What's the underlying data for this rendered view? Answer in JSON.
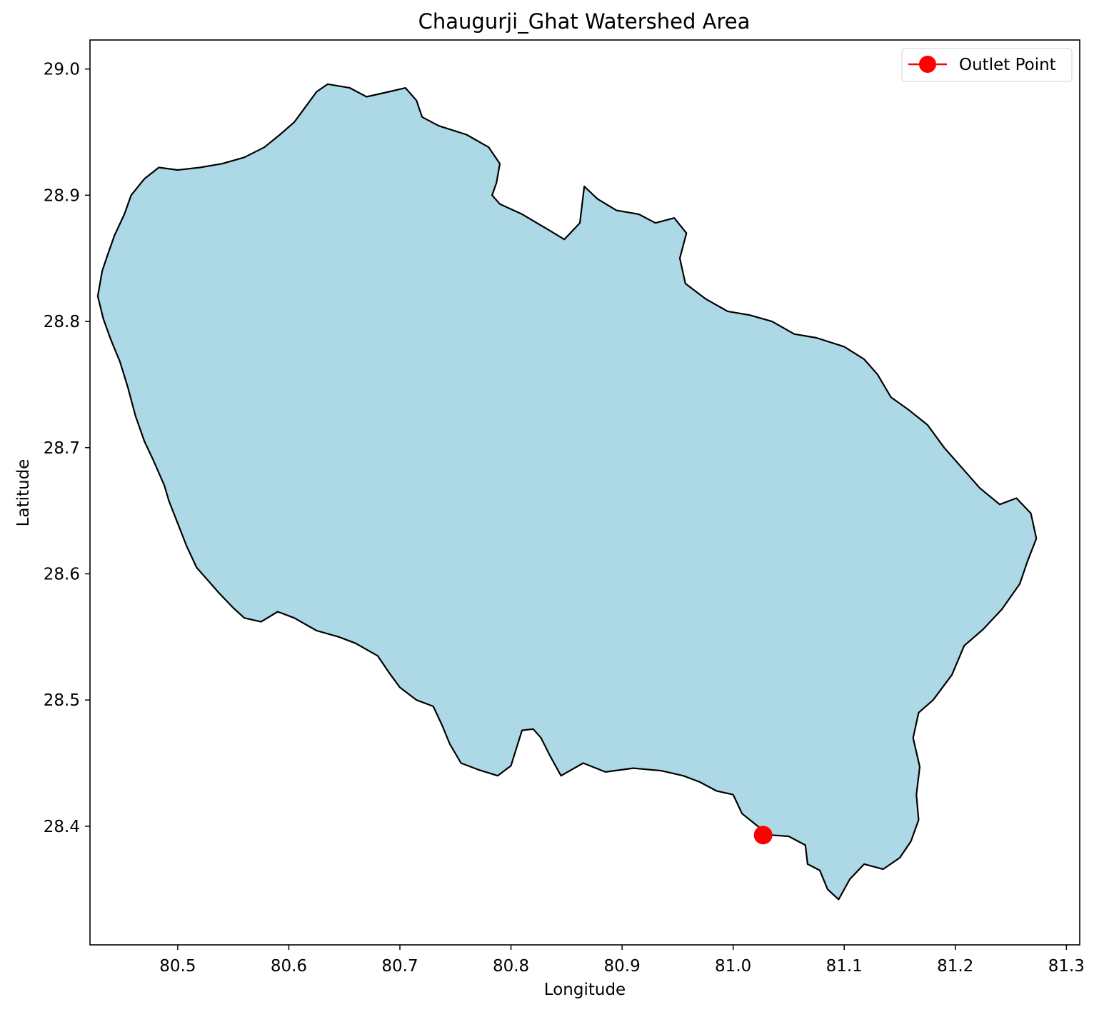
{
  "chart_data": {
    "type": "map",
    "title": "Chaugurji_Ghat Watershed Area",
    "xlabel": "Longitude",
    "ylabel": "Latitude",
    "xlim": [
      80.421,
      81.312
    ],
    "ylim": [
      28.306,
      29.023
    ],
    "xticks": [
      80.5,
      80.6,
      80.7,
      80.8,
      80.9,
      81.0,
      81.1,
      81.2,
      81.3
    ],
    "xtick_labels": [
      "80.5",
      "80.6",
      "80.7",
      "80.8",
      "80.9",
      "81.0",
      "81.1",
      "81.2",
      "81.3"
    ],
    "yticks": [
      28.4,
      28.5,
      28.6,
      28.7,
      28.8,
      28.9,
      29.0
    ],
    "ytick_labels": [
      "28.4",
      "28.5",
      "28.6",
      "28.7",
      "28.8",
      "28.9",
      "29.0"
    ],
    "grid": false,
    "legend": {
      "placement": "top-right",
      "entries": [
        "Outlet Point"
      ]
    },
    "watershed": {
      "fill": "#add8e6",
      "edge": "#000000",
      "boundary": [
        [
          80.635,
          28.988
        ],
        [
          80.655,
          28.985
        ],
        [
          80.67,
          28.978
        ],
        [
          80.69,
          28.982
        ],
        [
          80.705,
          28.985
        ],
        [
          80.715,
          28.975
        ],
        [
          80.72,
          28.962
        ],
        [
          80.735,
          28.955
        ],
        [
          80.76,
          28.948
        ],
        [
          80.78,
          28.938
        ],
        [
          80.79,
          28.925
        ],
        [
          80.787,
          28.91
        ],
        [
          80.783,
          28.9
        ],
        [
          80.79,
          28.893
        ],
        [
          80.81,
          28.885
        ],
        [
          80.833,
          28.873
        ],
        [
          80.848,
          28.865
        ],
        [
          80.862,
          28.878
        ],
        [
          80.866,
          28.907
        ],
        [
          80.878,
          28.897
        ],
        [
          80.895,
          28.888
        ],
        [
          80.915,
          28.885
        ],
        [
          80.93,
          28.878
        ],
        [
          80.947,
          28.882
        ],
        [
          80.958,
          28.87
        ],
        [
          80.952,
          28.85
        ],
        [
          80.957,
          28.83
        ],
        [
          80.975,
          28.818
        ],
        [
          80.995,
          28.808
        ],
        [
          81.015,
          28.805
        ],
        [
          81.035,
          28.8
        ],
        [
          81.055,
          28.79
        ],
        [
          81.075,
          28.787
        ],
        [
          81.1,
          28.78
        ],
        [
          81.118,
          28.77
        ],
        [
          81.13,
          28.758
        ],
        [
          81.142,
          28.74
        ],
        [
          81.158,
          28.73
        ],
        [
          81.175,
          28.718
        ],
        [
          81.19,
          28.7
        ],
        [
          81.205,
          28.685
        ],
        [
          81.222,
          28.668
        ],
        [
          81.24,
          28.655
        ],
        [
          81.255,
          28.66
        ],
        [
          81.268,
          28.648
        ],
        [
          81.273,
          28.628
        ],
        [
          81.265,
          28.61
        ],
        [
          81.258,
          28.592
        ],
        [
          81.242,
          28.572
        ],
        [
          81.225,
          28.556
        ],
        [
          81.208,
          28.543
        ],
        [
          81.197,
          28.52
        ],
        [
          81.18,
          28.5
        ],
        [
          81.167,
          28.49
        ],
        [
          81.162,
          28.47
        ],
        [
          81.168,
          28.447
        ],
        [
          81.165,
          28.425
        ],
        [
          81.167,
          28.405
        ],
        [
          81.16,
          28.388
        ],
        [
          81.15,
          28.375
        ],
        [
          81.135,
          28.366
        ],
        [
          81.118,
          28.37
        ],
        [
          81.105,
          28.358
        ],
        [
          81.095,
          28.342
        ],
        [
          81.085,
          28.35
        ],
        [
          81.078,
          28.365
        ],
        [
          81.067,
          28.37
        ],
        [
          81.065,
          28.385
        ],
        [
          81.05,
          28.392
        ],
        [
          81.035,
          28.393
        ],
        [
          81.025,
          28.398
        ],
        [
          81.008,
          28.41
        ],
        [
          81.0,
          28.425
        ],
        [
          80.985,
          28.428
        ],
        [
          80.97,
          28.435
        ],
        [
          80.955,
          28.44
        ],
        [
          80.935,
          28.444
        ],
        [
          80.91,
          28.446
        ],
        [
          80.885,
          28.443
        ],
        [
          80.865,
          28.45
        ],
        [
          80.845,
          28.44
        ],
        [
          80.835,
          28.456
        ],
        [
          80.827,
          28.47
        ],
        [
          80.82,
          28.477
        ],
        [
          80.81,
          28.476
        ],
        [
          80.805,
          28.462
        ],
        [
          80.8,
          28.448
        ],
        [
          80.788,
          28.44
        ],
        [
          80.77,
          28.445
        ],
        [
          80.755,
          28.45
        ],
        [
          80.745,
          28.465
        ],
        [
          80.738,
          28.48
        ],
        [
          80.73,
          28.495
        ],
        [
          80.715,
          28.5
        ],
        [
          80.7,
          28.51
        ],
        [
          80.69,
          28.522
        ],
        [
          80.68,
          28.535
        ],
        [
          80.66,
          28.545
        ],
        [
          80.645,
          28.55
        ],
        [
          80.625,
          28.555
        ],
        [
          80.605,
          28.565
        ],
        [
          80.59,
          28.57
        ],
        [
          80.575,
          28.562
        ],
        [
          80.56,
          28.565
        ],
        [
          80.55,
          28.573
        ],
        [
          80.537,
          28.585
        ],
        [
          80.527,
          28.595
        ],
        [
          80.517,
          28.605
        ],
        [
          80.508,
          28.622
        ],
        [
          80.5,
          28.64
        ],
        [
          80.492,
          28.658
        ],
        [
          80.488,
          28.67
        ],
        [
          80.478,
          28.69
        ],
        [
          80.47,
          28.705
        ],
        [
          80.462,
          28.725
        ],
        [
          80.455,
          28.748
        ],
        [
          80.448,
          28.768
        ],
        [
          80.44,
          28.785
        ],
        [
          80.433,
          28.802
        ],
        [
          80.428,
          28.82
        ],
        [
          80.432,
          28.84
        ],
        [
          80.437,
          28.853
        ],
        [
          80.443,
          28.868
        ],
        [
          80.452,
          28.885
        ],
        [
          80.458,
          28.9
        ],
        [
          80.47,
          28.913
        ],
        [
          80.483,
          28.922
        ],
        [
          80.5,
          28.92
        ],
        [
          80.52,
          28.922
        ],
        [
          80.54,
          28.925
        ],
        [
          80.56,
          28.93
        ],
        [
          80.578,
          28.938
        ],
        [
          80.592,
          28.948
        ],
        [
          80.605,
          28.958
        ],
        [
          80.615,
          28.97
        ],
        [
          80.625,
          28.982
        ]
      ]
    },
    "outlet": {
      "label": "Outlet Point",
      "lon": 81.027,
      "lat": 28.393,
      "color": "#ff0000"
    }
  }
}
